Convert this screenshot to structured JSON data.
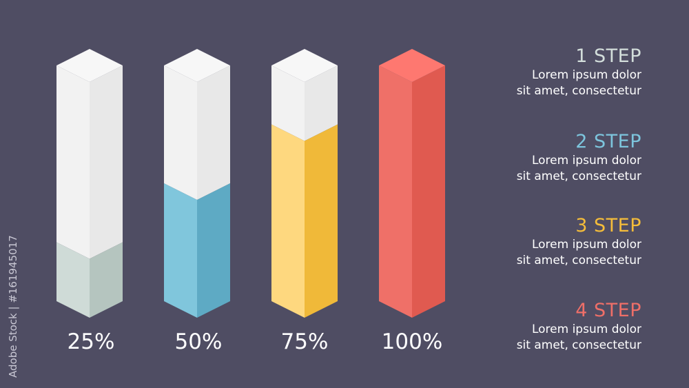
{
  "chart_data": {
    "type": "bar",
    "style": "isometric-3d-columns",
    "categories": [
      "1 STEP",
      "2 STEP",
      "3 STEP",
      "4 STEP"
    ],
    "values": [
      25,
      50,
      75,
      100
    ],
    "labels": [
      "25%",
      "50%",
      "75%",
      "100%"
    ],
    "ylim": [
      0,
      100
    ],
    "grid": false,
    "colors": {
      "background": "#4f4d63",
      "empty_top": "#f7f7f7",
      "empty_left": "#f2f2f2",
      "empty_right": "#e8e8e8",
      "series": [
        {
          "left": "#cfdbd7",
          "right": "#b5c5bf",
          "top": "#dde6e3"
        },
        {
          "left": "#80c6dc",
          "right": "#5eaac4",
          "top": "#9ad3e5"
        },
        {
          "left": "#fed87f",
          "right": "#f0b939",
          "top": "#ffe29c"
        },
        {
          "left": "#ef7068",
          "right": "#e05a50",
          "top": "#fe7870"
        }
      ]
    }
  },
  "steps": [
    {
      "title": "1 STEP",
      "color": "#d3dedb",
      "line1": "Lorem ipsum dolor",
      "line2": "sit amet, consectetur"
    },
    {
      "title": "2 STEP",
      "color": "#7dc5dd",
      "line1": "Lorem ipsum dolor",
      "line2": "sit amet, consectetur"
    },
    {
      "title": "3 STEP",
      "color": "#f5bd3a",
      "line1": "Lorem ipsum dolor",
      "line2": "sit amet, consectetur"
    },
    {
      "title": "4 STEP",
      "color": "#ef6f68",
      "line1": "Lorem ipsum dolor",
      "line2": "sit amet, consectetur"
    }
  ],
  "watermark": "Adobe Stock | #161945017"
}
